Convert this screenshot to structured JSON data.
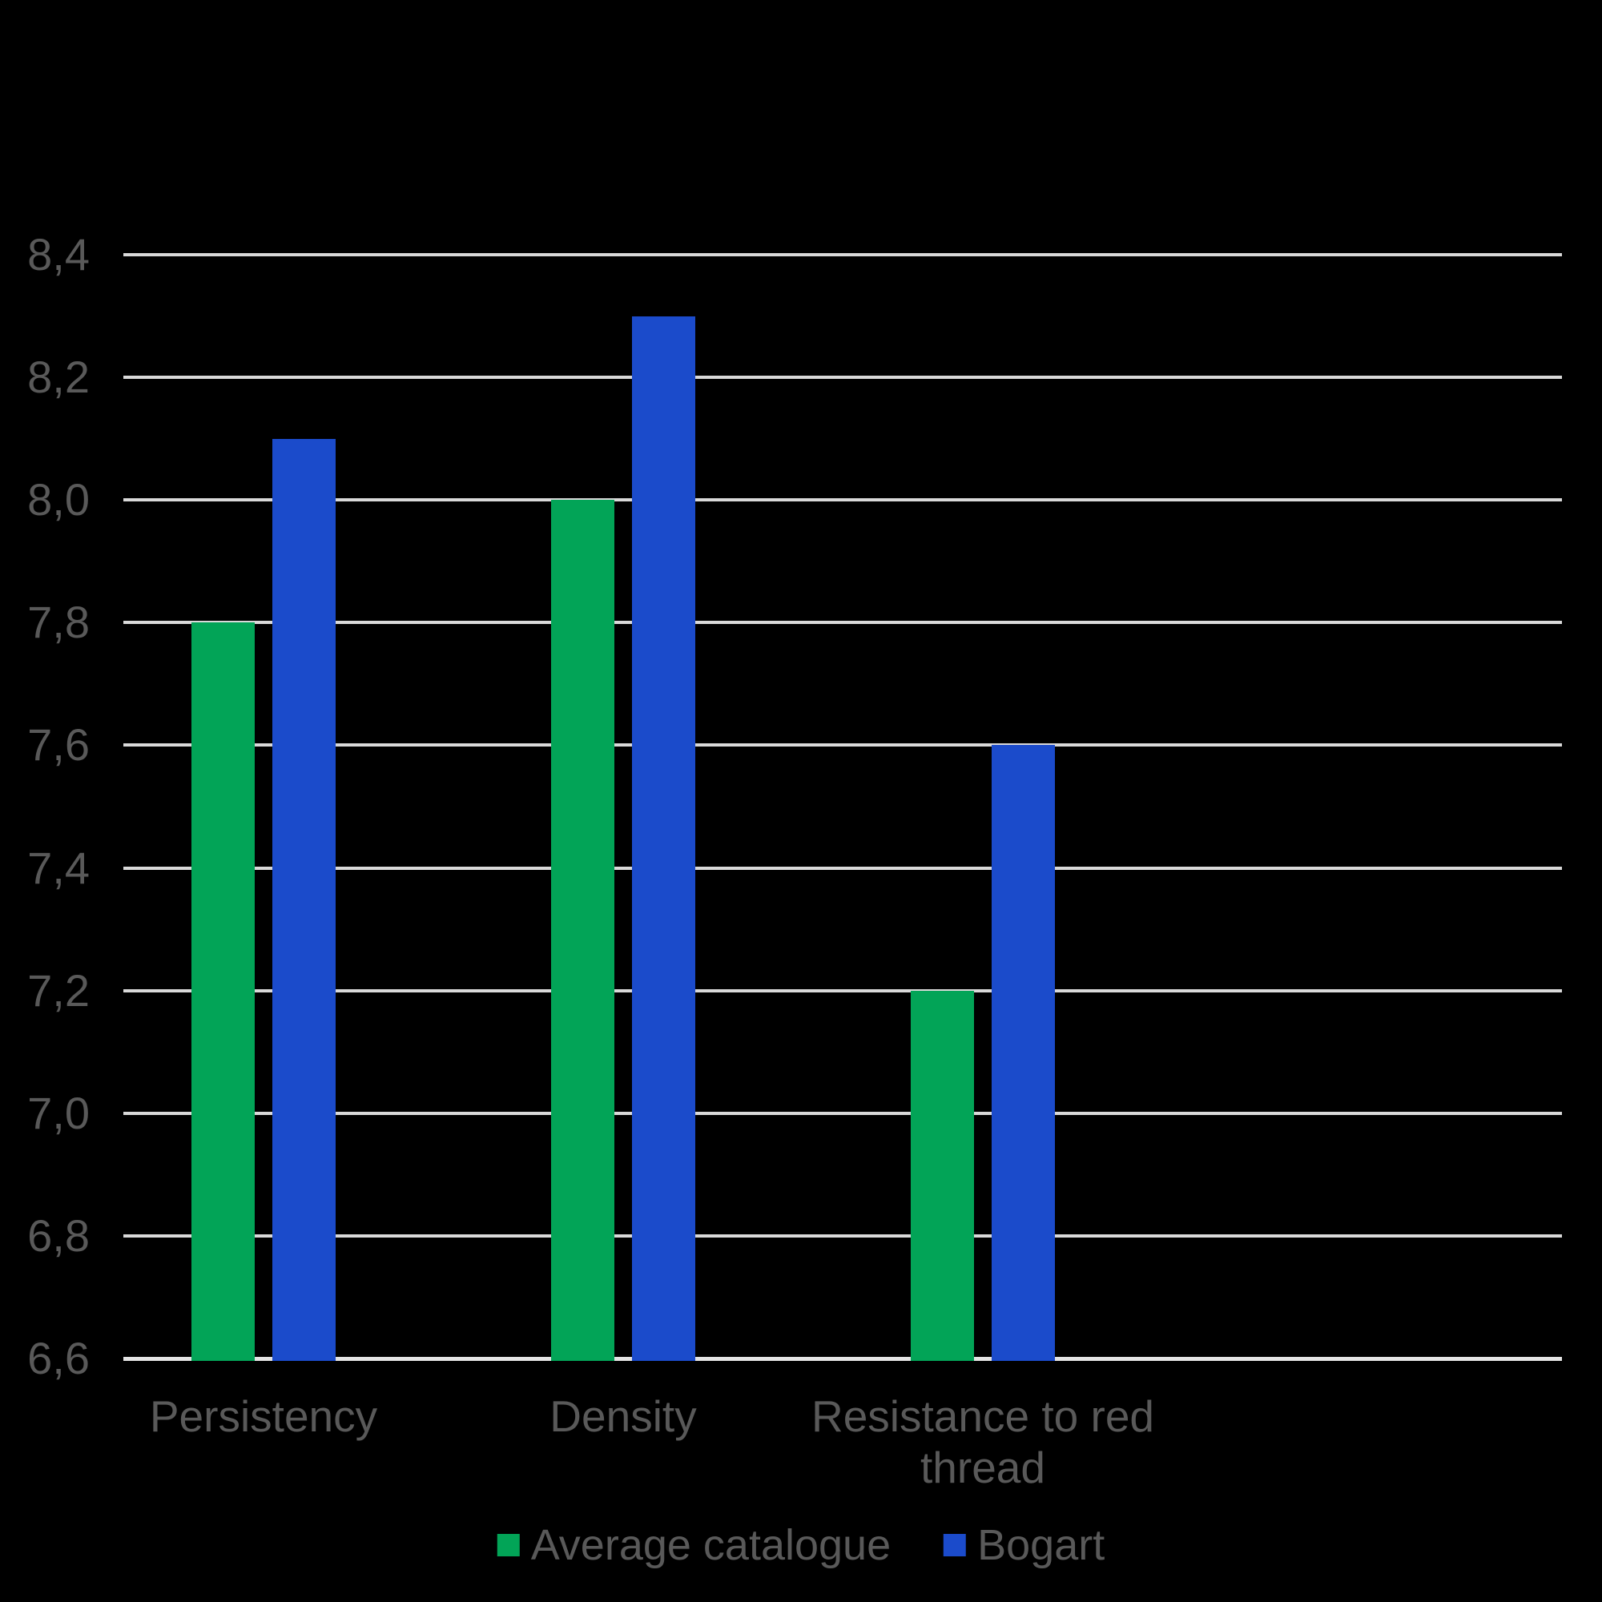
{
  "chart_data": {
    "type": "bar",
    "title": "",
    "xlabel": "",
    "ylabel": "",
    "categories": [
      "Persistency",
      "Density",
      "Resistance to red thread"
    ],
    "series": [
      {
        "name": "Average catalogue",
        "color": "#02A457",
        "values": [
          7.8,
          8.0,
          7.2
        ]
      },
      {
        "name": "Bogart",
        "color": "#1B4BCB",
        "values": [
          8.1,
          8.3,
          7.6
        ]
      }
    ],
    "ylim": [
      6.6,
      8.4
    ],
    "ytick_step": 0.2,
    "ytick_labels": [
      "6,6",
      "6,8",
      "7,0",
      "7,2",
      "7,4",
      "7,6",
      "7,8",
      "8,0",
      "8,2",
      "8,4"
    ],
    "decimal_separator": ",",
    "grid": true,
    "legend_position": "bottom"
  },
  "colors": {
    "background": "#000000",
    "gridline": "#D9D9D9",
    "axis_line": "#E4E4E4",
    "tick_label": "#595959",
    "category_label": "#595959",
    "legend_label": "#595959"
  }
}
